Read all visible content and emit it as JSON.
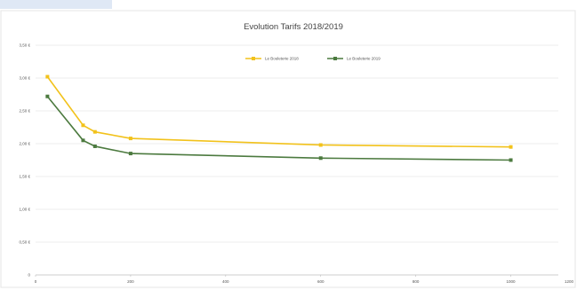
{
  "chart_data": {
    "type": "line",
    "title": "Evolution Tarifs 2018/2019",
    "xlabel": "",
    "ylabel": "",
    "xlim": [
      0,
      1100
    ],
    "ylim": [
      0,
      3.5
    ],
    "x_ticks": [
      "0",
      "200",
      "400",
      "600",
      "800",
      "1000",
      "1200"
    ],
    "y_ticks": [
      "0",
      "0,50 €",
      "1,00 €",
      "1,50 €",
      "2,00 €",
      "2,50 €",
      "3,00 €",
      "3,50 €"
    ],
    "grid": true,
    "legend_position": "top-center",
    "series": [
      {
        "name": "Le Bouleterie 2018",
        "color": "#f2c21b",
        "x": [
          25,
          100,
          125,
          200,
          600,
          1000
        ],
        "y": [
          3.02,
          2.28,
          2.18,
          2.08,
          1.98,
          1.95
        ]
      },
      {
        "name": "Le Bouleterie 2019",
        "color": "#4c7a3f",
        "x": [
          25,
          100,
          125,
          200,
          600,
          1000
        ],
        "y": [
          2.72,
          2.05,
          1.96,
          1.85,
          1.78,
          1.75
        ]
      }
    ]
  }
}
